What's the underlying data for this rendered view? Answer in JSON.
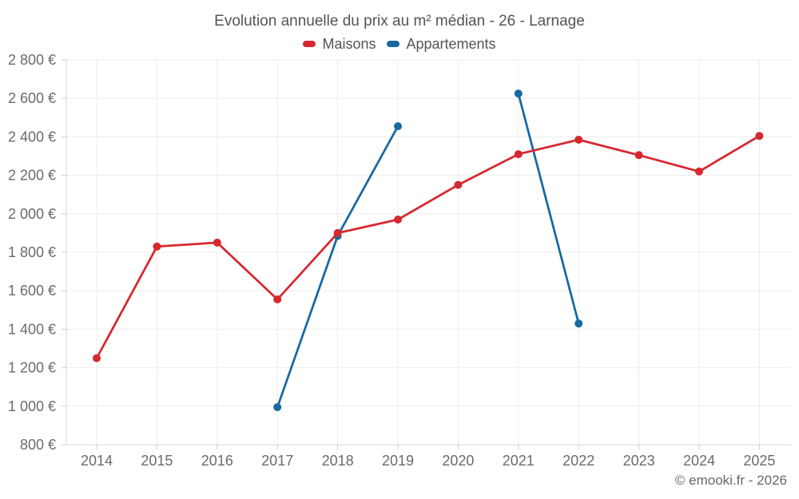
{
  "page": {
    "watermark": "© emooki.fr - 2026"
  },
  "chart_data": {
    "type": "line",
    "title": "Evolution annuelle du prix au m² médian - 26 - Larnage",
    "categories": [
      2014,
      2015,
      2016,
      2017,
      2018,
      2019,
      2020,
      2021,
      2022,
      2023,
      2024,
      2025
    ],
    "series": [
      {
        "name": "Maisons",
        "color": "#d7282f",
        "values": [
          1250,
          1830,
          1850,
          1555,
          1900,
          1970,
          2150,
          2310,
          2385,
          2305,
          2220,
          2405
        ]
      },
      {
        "name": "Appartements",
        "color": "#1769a0",
        "values": [
          null,
          null,
          null,
          995,
          1885,
          2455,
          null,
          2625,
          1430,
          null,
          null,
          null
        ]
      }
    ],
    "ylim": [
      800,
      2800
    ],
    "ytick_step": 200,
    "y_unit": "€",
    "xlabel": "",
    "ylabel": "",
    "grid": true,
    "legend_position": "top",
    "style": {
      "grid_color": "#ededed",
      "axis_color": "#d9d9d9",
      "tick_color": "#cccccc",
      "label_color": "#6b6b6b"
    }
  }
}
